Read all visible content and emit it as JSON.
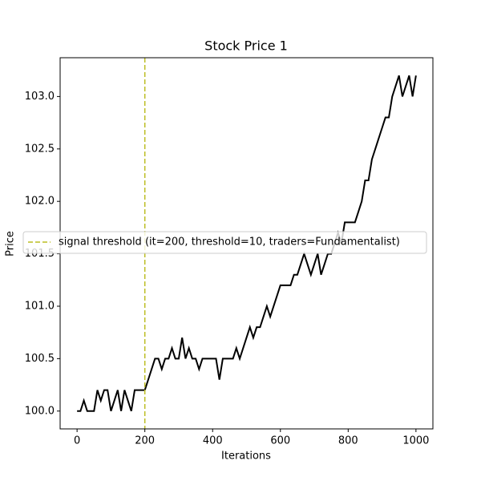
{
  "chart_data": {
    "type": "line",
    "title": "Stock Price 1",
    "xlabel": "Iterations",
    "ylabel": "Price",
    "x": [
      0,
      10,
      20,
      30,
      40,
      50,
      60,
      70,
      80,
      90,
      100,
      110,
      120,
      130,
      140,
      150,
      160,
      170,
      180,
      190,
      200,
      210,
      220,
      230,
      240,
      250,
      260,
      270,
      280,
      290,
      300,
      310,
      320,
      330,
      340,
      350,
      360,
      370,
      380,
      390,
      400,
      410,
      420,
      430,
      440,
      450,
      460,
      470,
      480,
      490,
      500,
      510,
      520,
      530,
      540,
      550,
      560,
      570,
      580,
      590,
      600,
      610,
      620,
      630,
      640,
      650,
      660,
      670,
      680,
      690,
      700,
      710,
      720,
      730,
      740,
      750,
      760,
      770,
      780,
      790,
      800,
      810,
      820,
      830,
      840,
      850,
      860,
      870,
      880,
      890,
      900,
      910,
      920,
      930,
      940,
      950,
      960,
      970,
      980,
      990,
      1000
    ],
    "series": [
      {
        "name": "Stock Price 1",
        "color": "#000000",
        "values": [
          100.0,
          100.0,
          100.1,
          100.0,
          100.0,
          100.0,
          100.2,
          100.1,
          100.2,
          100.2,
          100.0,
          100.1,
          100.2,
          100.0,
          100.2,
          100.1,
          100.0,
          100.2,
          100.2,
          100.2,
          100.2,
          100.3,
          100.4,
          100.5,
          100.5,
          100.4,
          100.5,
          100.5,
          100.6,
          100.5,
          100.5,
          100.7,
          100.5,
          100.6,
          100.5,
          100.5,
          100.4,
          100.5,
          100.5,
          100.5,
          100.5,
          100.5,
          100.3,
          100.5,
          100.5,
          100.5,
          100.5,
          100.6,
          100.5,
          100.6,
          100.7,
          100.8,
          100.7,
          100.8,
          100.8,
          100.9,
          101.0,
          100.9,
          101.0,
          101.1,
          101.2,
          101.2,
          101.2,
          101.2,
          101.3,
          101.3,
          101.4,
          101.5,
          101.4,
          101.3,
          101.4,
          101.5,
          101.3,
          101.4,
          101.5,
          101.5,
          101.6,
          101.7,
          101.6,
          101.8,
          101.8,
          101.8,
          101.8,
          101.9,
          102.0,
          102.2,
          102.2,
          102.4,
          102.5,
          102.6,
          102.7,
          102.8,
          102.8,
          103.0,
          103.1,
          103.2,
          103.0,
          103.1,
          103.2,
          103.0,
          103.2
        ]
      }
    ],
    "threshold": {
      "x": 200,
      "color": "#bcbd22",
      "label": "signal threshold (it=200, threshold=10, traders=Fundamentalist)"
    },
    "xlim": [
      -50,
      1050
    ],
    "xticks": [
      0,
      200,
      400,
      600,
      800,
      1000
    ],
    "ylim": [
      99.83,
      103.37
    ],
    "yticks": [
      {
        "value": 100,
        "label": "100.0"
      },
      {
        "value": 100.5,
        "label": "100.5"
      },
      {
        "value": 101,
        "label": "101.0"
      },
      {
        "value": 101.5,
        "label": "101.5"
      },
      {
        "value": 102,
        "label": "102.0"
      },
      {
        "value": 102.5,
        "label": "102.5"
      },
      {
        "value": 103,
        "label": "103.0"
      }
    ]
  }
}
